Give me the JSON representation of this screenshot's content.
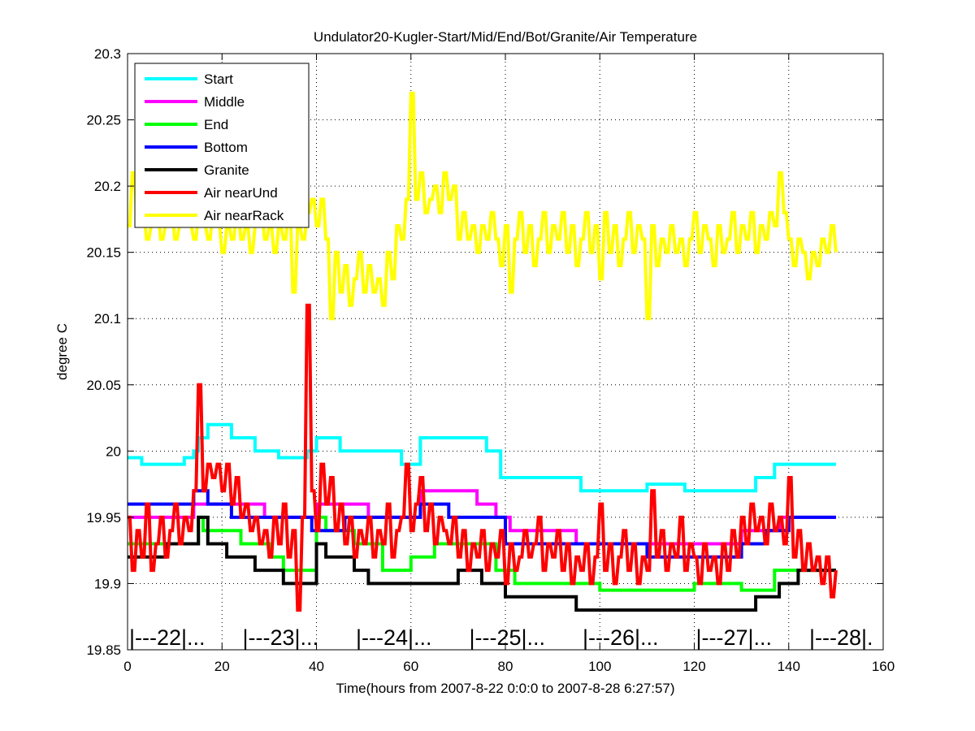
{
  "chart_data": {
    "type": "line",
    "title": "Undulator20-Kugler-Start/Mid/End/Bot/Granite/Air Temperature",
    "xlabel": "Time(hours from 2007-8-22 0:0:0 to 2007-8-28 6:27:57)",
    "ylabel": "degree C",
    "xlim": [
      0,
      160
    ],
    "ylim": [
      19.85,
      20.3
    ],
    "xticks": [
      0,
      20,
      40,
      60,
      80,
      100,
      120,
      140,
      160
    ],
    "xtick_labels": [
      "0",
      "20",
      "40",
      "60",
      "80",
      "100",
      "120",
      "140",
      "160"
    ],
    "yticks": [
      19.85,
      19.9,
      19.95,
      20,
      20.05,
      20.1,
      20.15,
      20.2,
      20.25,
      20.3
    ],
    "ytick_labels": [
      "19.85",
      "19.9",
      "19.95",
      "20",
      "20.05",
      "20.1",
      "20.15",
      "20.2",
      "20.25",
      "20.3"
    ],
    "grid": true,
    "legend_position": "top-left",
    "day_markers": [
      {
        "x": 0,
        "label": "|---22|..."
      },
      {
        "x": 24,
        "label": "|---23|..."
      },
      {
        "x": 48,
        "label": "|---24|..."
      },
      {
        "x": 72,
        "label": "|---25|..."
      },
      {
        "x": 96,
        "label": "|---26|..."
      },
      {
        "x": 120,
        "label": "|---27|..."
      },
      {
        "x": 144,
        "label": "|---28|."
      }
    ],
    "series": [
      {
        "name": "Start",
        "color": "#00ffff",
        "style": "step",
        "points": [
          [
            0,
            19.995
          ],
          [
            3,
            19.99
          ],
          [
            12,
            19.995
          ],
          [
            14,
            20.0
          ],
          [
            15,
            20.01
          ],
          [
            17,
            20.02
          ],
          [
            22,
            20.01
          ],
          [
            27,
            20.0
          ],
          [
            32,
            19.995
          ],
          [
            38,
            20.0
          ],
          [
            40,
            20.01
          ],
          [
            45,
            20.0
          ],
          [
            58,
            19.99
          ],
          [
            62,
            20.01
          ],
          [
            76,
            20.0
          ],
          [
            79,
            19.98
          ],
          [
            96,
            19.97
          ],
          [
            110,
            19.975
          ],
          [
            118,
            19.97
          ],
          [
            133,
            19.98
          ],
          [
            137,
            19.99
          ],
          [
            150,
            19.99
          ]
        ]
      },
      {
        "name": "Middle",
        "color": "#ff00ff",
        "style": "step",
        "points": [
          [
            0,
            19.95
          ],
          [
            14,
            19.96
          ],
          [
            29,
            19.95
          ],
          [
            40,
            19.96
          ],
          [
            51,
            19.95
          ],
          [
            62,
            19.97
          ],
          [
            74,
            19.96
          ],
          [
            78,
            19.95
          ],
          [
            81,
            19.94
          ],
          [
            95,
            19.93
          ],
          [
            130,
            19.94
          ],
          [
            138,
            19.95
          ],
          [
            150,
            19.95
          ]
        ]
      },
      {
        "name": "End",
        "color": "#00ff00",
        "style": "step",
        "points": [
          [
            0,
            19.93
          ],
          [
            15,
            19.95
          ],
          [
            16,
            19.94
          ],
          [
            24,
            19.93
          ],
          [
            30,
            19.92
          ],
          [
            33,
            19.91
          ],
          [
            40,
            19.95
          ],
          [
            42,
            19.94
          ],
          [
            48,
            19.93
          ],
          [
            54,
            19.91
          ],
          [
            60,
            19.92
          ],
          [
            65,
            19.93
          ],
          [
            78,
            19.91
          ],
          [
            82,
            19.9
          ],
          [
            100,
            19.895
          ],
          [
            120,
            19.9
          ],
          [
            130,
            19.895
          ],
          [
            137,
            19.91
          ],
          [
            150,
            19.91
          ]
        ]
      },
      {
        "name": "Bottom",
        "color": "#0000ff",
        "style": "step",
        "points": [
          [
            0,
            19.96
          ],
          [
            14,
            19.97
          ],
          [
            17,
            19.96
          ],
          [
            22,
            19.95
          ],
          [
            39,
            19.94
          ],
          [
            46,
            19.95
          ],
          [
            62,
            19.96
          ],
          [
            68,
            19.95
          ],
          [
            80,
            19.93
          ],
          [
            110,
            19.92
          ],
          [
            130,
            19.93
          ],
          [
            135,
            19.94
          ],
          [
            140,
            19.95
          ],
          [
            150,
            19.95
          ]
        ]
      },
      {
        "name": "Granite",
        "color": "#000000",
        "style": "step",
        "points": [
          [
            0,
            19.92
          ],
          [
            8,
            19.93
          ],
          [
            15,
            19.95
          ],
          [
            17,
            19.93
          ],
          [
            21,
            19.92
          ],
          [
            27,
            19.91
          ],
          [
            33,
            19.9
          ],
          [
            40,
            19.93
          ],
          [
            42,
            19.92
          ],
          [
            48,
            19.91
          ],
          [
            51,
            19.9
          ],
          [
            70,
            19.91
          ],
          [
            75,
            19.9
          ],
          [
            80,
            19.89
          ],
          [
            95,
            19.88
          ],
          [
            133,
            19.89
          ],
          [
            138,
            19.9
          ],
          [
            142,
            19.91
          ],
          [
            150,
            19.91
          ]
        ]
      },
      {
        "name": "Air nearUnd",
        "color": "#ff0000",
        "style": "line",
        "x_start": 0,
        "x_step": 1,
        "values": [
          19.95,
          19.91,
          19.94,
          19.92,
          19.96,
          19.91,
          19.93,
          19.95,
          19.92,
          19.94,
          19.96,
          19.93,
          19.95,
          19.94,
          19.97,
          20.05,
          19.97,
          19.99,
          19.98,
          19.99,
          19.97,
          19.99,
          19.96,
          19.98,
          19.95,
          19.96,
          19.94,
          19.95,
          19.93,
          19.94,
          19.92,
          19.95,
          19.93,
          19.96,
          19.92,
          19.94,
          19.88,
          19.95,
          20.11,
          19.97,
          19.94,
          19.99,
          19.96,
          19.98,
          19.94,
          19.96,
          19.93,
          19.95,
          19.92,
          19.94,
          19.93,
          19.95,
          19.92,
          19.94,
          19.93,
          19.96,
          19.92,
          19.94,
          19.95,
          19.99,
          19.94,
          19.96,
          19.98,
          19.94,
          19.96,
          19.93,
          19.95,
          19.94,
          19.93,
          19.95,
          19.92,
          19.94,
          19.91,
          19.93,
          19.92,
          19.94,
          19.91,
          19.93,
          19.92,
          19.94,
          19.9,
          19.93,
          19.91,
          19.92,
          19.94,
          19.92,
          19.93,
          19.95,
          19.91,
          19.93,
          19.92,
          19.94,
          19.91,
          19.93,
          19.9,
          19.92,
          19.91,
          19.93,
          19.9,
          19.92,
          19.96,
          19.91,
          19.93,
          19.9,
          19.92,
          19.94,
          19.91,
          19.93,
          19.9,
          19.92,
          19.91,
          19.97,
          19.92,
          19.94,
          19.91,
          19.93,
          19.92,
          19.95,
          19.91,
          19.93,
          19.92,
          19.9,
          19.93,
          19.91,
          19.92,
          19.9,
          19.93,
          19.91,
          19.94,
          19.92,
          19.95,
          19.93,
          19.96,
          19.94,
          19.95,
          19.93,
          19.96,
          19.94,
          19.95,
          19.93,
          19.98,
          19.92,
          19.94,
          19.91,
          19.93,
          19.91,
          19.92,
          19.9,
          19.92,
          19.89,
          19.91
        ]
      },
      {
        "name": "Air nearRack",
        "color": "#ffff00",
        "style": "line",
        "x_start": 0,
        "x_step": 1,
        "values": [
          20.17,
          20.21,
          20.17,
          20.18,
          20.16,
          20.17,
          20.18,
          20.16,
          20.17,
          20.18,
          20.16,
          20.17,
          20.18,
          20.17,
          20.16,
          20.18,
          20.17,
          20.16,
          20.18,
          20.17,
          20.15,
          20.17,
          20.16,
          20.18,
          20.16,
          20.17,
          20.15,
          20.17,
          20.18,
          20.16,
          20.17,
          20.15,
          20.17,
          20.16,
          20.18,
          20.12,
          20.17,
          20.16,
          20.18,
          20.19,
          20.17,
          20.19,
          20.16,
          20.1,
          20.15,
          20.12,
          20.14,
          20.11,
          20.13,
          20.15,
          20.12,
          20.14,
          20.12,
          20.13,
          20.11,
          20.15,
          20.13,
          20.17,
          20.16,
          20.19,
          20.27,
          20.19,
          20.21,
          20.18,
          20.19,
          20.2,
          20.18,
          20.21,
          20.19,
          20.2,
          20.16,
          20.18,
          20.16,
          20.17,
          20.15,
          20.17,
          20.16,
          20.18,
          20.16,
          20.14,
          20.17,
          20.12,
          20.16,
          20.18,
          20.15,
          20.17,
          20.14,
          20.16,
          20.18,
          20.15,
          20.17,
          20.16,
          20.18,
          20.15,
          20.17,
          20.14,
          20.16,
          20.18,
          20.15,
          20.17,
          20.13,
          20.18,
          20.15,
          20.17,
          20.14,
          20.16,
          20.18,
          20.15,
          20.17,
          20.16,
          20.1,
          20.17,
          20.14,
          20.16,
          20.15,
          20.17,
          20.15,
          20.16,
          20.14,
          20.16,
          20.18,
          20.15,
          20.17,
          20.16,
          20.14,
          20.17,
          20.15,
          20.16,
          20.18,
          20.15,
          20.17,
          20.16,
          20.18,
          20.15,
          20.17,
          20.16,
          20.18,
          20.17,
          20.21,
          20.18,
          20.16,
          20.14,
          20.16,
          20.15,
          20.13,
          20.15,
          20.14,
          20.16,
          20.15,
          20.17,
          20.15
        ]
      }
    ]
  }
}
